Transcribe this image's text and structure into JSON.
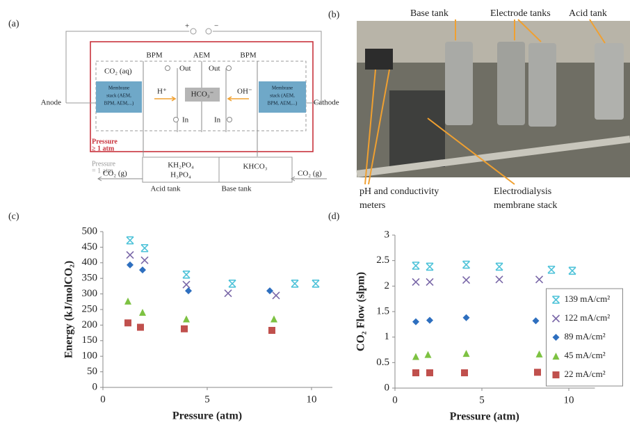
{
  "panel_labels": [
    "(a)",
    "(b)",
    "(c)",
    "(d)"
  ],
  "diagram": {
    "plus": "+",
    "minus": "−",
    "bpm_left": "BPM",
    "aem": "AEM",
    "bpm_right": "BPM",
    "co2_aq": "CO₂ (aq)",
    "out_left": "Out",
    "out_right": "Out",
    "stack_left": [
      "Membrane",
      "stack (AEM,",
      "BPM, AEM,...)"
    ],
    "stack_right": [
      "Membrane",
      "stack (AEM,",
      "BPM, AEM,...)"
    ],
    "h_plus": "H⁺",
    "hco3": "HCO₃⁻",
    "oh_minus": "OH⁻",
    "anode": "Anode",
    "cathode": "Cathode",
    "in_left": "In",
    "in_right": "In",
    "pressure_high": [
      "Pressure",
      "≥ 1 atm"
    ],
    "pressure_low": [
      "Pressure",
      "= 1 atm"
    ],
    "acid_contents": [
      "KH₂PO₄",
      "H₃PO₄"
    ],
    "base_contents": "KHCO₃",
    "co2_g_left": "CO₂ (g)",
    "co2_g_right": "CO₂ (g)",
    "acid_tank": "Acid tank",
    "base_tank": "Base tank"
  },
  "photo": {
    "base_tank": "Base tank",
    "electrode_tanks": "Electrode tanks",
    "acid_tank": "Acid tank",
    "meters": [
      "pH and conductivity",
      "meters"
    ],
    "stack": [
      "Electrodialysis",
      "membrane stack"
    ]
  },
  "chart_data": [
    {
      "type": "scatter",
      "xlabel": "Pressure (atm)",
      "ylabel": "Energy (kJ/molCO₂)",
      "xlim": [
        0,
        11
      ],
      "ylim": [
        0,
        500
      ],
      "xticks": [
        0,
        5,
        10
      ],
      "yticks": [
        0,
        50,
        100,
        150,
        200,
        250,
        300,
        350,
        400,
        450,
        500
      ],
      "series": [
        {
          "name": "139 mA/cm²",
          "color": "#4fc3d9",
          "marker": "asterisk",
          "x": [
            1.3,
            2.0,
            4.0,
            6.2,
            9.2,
            10.2
          ],
          "values": [
            472,
            447,
            362,
            333,
            333,
            333
          ]
        },
        {
          "name": "122 mA/cm²",
          "color": "#7a68a8",
          "marker": "x",
          "x": [
            1.3,
            2.0,
            4.0,
            6.0,
            8.3
          ],
          "values": [
            425,
            408,
            330,
            302,
            295
          ]
        },
        {
          "name": "89 mA/cm²",
          "color": "#2e6fbf",
          "marker": "diamond",
          "x": [
            1.3,
            1.9,
            4.1,
            8.0
          ],
          "values": [
            393,
            377,
            310,
            310
          ]
        },
        {
          "name": "45 mA/cm²",
          "color": "#7dc242",
          "marker": "triangle",
          "x": [
            1.2,
            1.9,
            4.0,
            8.2
          ],
          "values": [
            277,
            241,
            220,
            220
          ]
        },
        {
          "name": "22 mA/cm²",
          "color": "#c0504d",
          "marker": "square",
          "x": [
            1.2,
            1.8,
            3.9,
            8.1
          ],
          "values": [
            207,
            193,
            188,
            183
          ]
        }
      ]
    },
    {
      "type": "scatter",
      "xlabel": "Pressure (atm)",
      "ylabel": "CO₂ Flow (slpm)",
      "xlim": [
        0,
        11.5
      ],
      "ylim": [
        0,
        3
      ],
      "xticks": [
        0,
        5,
        10
      ],
      "yticks": [
        0,
        0.5,
        1,
        1.5,
        2,
        2.5,
        3
      ],
      "legend": "lower right",
      "series": [
        {
          "name": "139 mA/cm²",
          "color": "#4fc3d9",
          "marker": "asterisk",
          "x": [
            1.2,
            2.0,
            4.1,
            6.0,
            9.0,
            10.2
          ],
          "values": [
            2.4,
            2.38,
            2.42,
            2.38,
            2.32,
            2.3
          ]
        },
        {
          "name": "122 mA/cm²",
          "color": "#7a68a8",
          "marker": "x",
          "x": [
            1.2,
            2.0,
            4.1,
            6.0,
            8.3
          ],
          "values": [
            2.08,
            2.08,
            2.12,
            2.13,
            2.13
          ]
        },
        {
          "name": "89 mA/cm²",
          "color": "#2e6fbf",
          "marker": "diamond",
          "x": [
            1.2,
            2.0,
            4.1,
            8.1
          ],
          "values": [
            1.3,
            1.33,
            1.38,
            1.32
          ]
        },
        {
          "name": "45 mA/cm²",
          "color": "#7dc242",
          "marker": "triangle",
          "x": [
            1.2,
            1.9,
            4.1,
            8.3
          ],
          "values": [
            0.62,
            0.66,
            0.68,
            0.67
          ]
        },
        {
          "name": "22 mA/cm²",
          "color": "#c0504d",
          "marker": "square",
          "x": [
            1.2,
            2.0,
            4.0,
            8.2
          ],
          "values": [
            0.3,
            0.3,
            0.3,
            0.31
          ]
        }
      ]
    }
  ]
}
